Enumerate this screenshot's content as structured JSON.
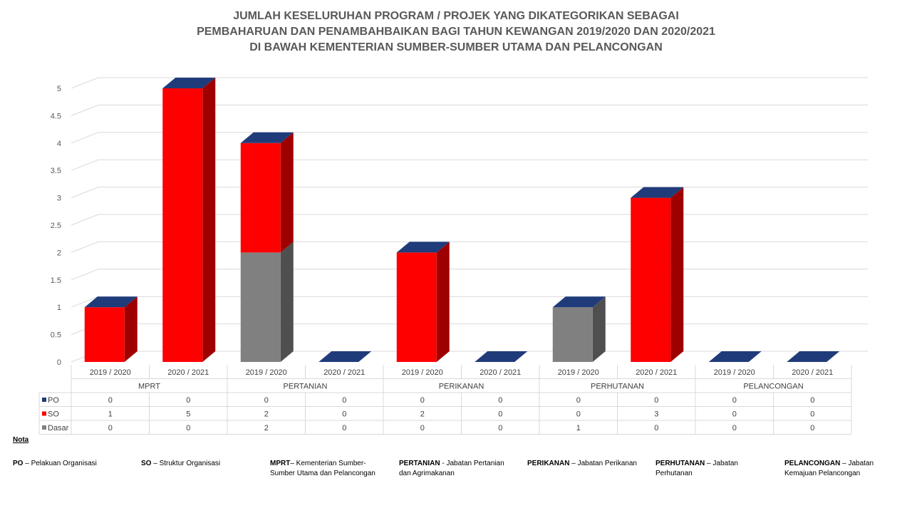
{
  "title_lines": [
    "JUMLAH KESELURUHAN PROGRAM / PROJEK  YANG DIKATEGORIKAN SEBAGAI",
    "PEMBAHARUAN DAN PENAMBAHBAIKAN BAGI TAHUN KEWANGAN 2019/2020 DAN 2020/2021",
    "DI BAWAH KEMENTERIAN SUMBER-SUMBER UTAMA DAN PELANCONGAN"
  ],
  "chart_data": {
    "type": "bar",
    "stacked": true,
    "three_d": true,
    "groups": [
      "MPRT",
      "PERTANIAN",
      "PERIKANAN",
      "PERHUTANAN",
      "PELANCONGAN"
    ],
    "categories": [
      "2019 / 2020",
      "2020 / 2021",
      "2019 / 2020",
      "2020 / 2021",
      "2019 / 2020",
      "2020 / 2021",
      "2019 / 2020",
      "2020 / 2021",
      "2019 / 2020",
      "2020 / 2021"
    ],
    "series": [
      {
        "name": "PO",
        "color": "#1f3b7a",
        "values": [
          0,
          0,
          0,
          0,
          0,
          0,
          0,
          0,
          0,
          0
        ]
      },
      {
        "name": "SO",
        "color": "#ff0000",
        "values": [
          1,
          5,
          2,
          0,
          2,
          0,
          0,
          3,
          0,
          0
        ]
      },
      {
        "name": "Dasar",
        "color": "#808080",
        "values": [
          0,
          0,
          2,
          0,
          0,
          0,
          1,
          0,
          0,
          0
        ]
      }
    ],
    "ylim": [
      0,
      5
    ],
    "yticks": [
      "0",
      "0.5",
      "1",
      "1.5",
      "2",
      "2.5",
      "3",
      "3.5",
      "4",
      "4.5",
      "5"
    ],
    "grid": true,
    "legend": "data-table"
  },
  "notes": {
    "heading": "Nota",
    "items": [
      {
        "key": "PO",
        "text": " – Pelakuan Organisasi"
      },
      {
        "key": "SO",
        "text": " – Struktur Organisasi"
      },
      {
        "key": "MPRT",
        "text": "– Kementerian Sumber-Sumber Utama dan Pelancongan"
      },
      {
        "key": "PERTANIAN",
        "text": "  - Jabatan Pertanian dan Agrimakanan"
      },
      {
        "key": "PERIKANAN",
        "text": " – Jabatan Perikanan"
      },
      {
        "key": "PERHUTANAN",
        "text": "  – Jabatan Perhutanan"
      },
      {
        "key": "PELANCONGAN",
        "text": " – Jabatan Kemajuan Pelancongan"
      }
    ]
  }
}
